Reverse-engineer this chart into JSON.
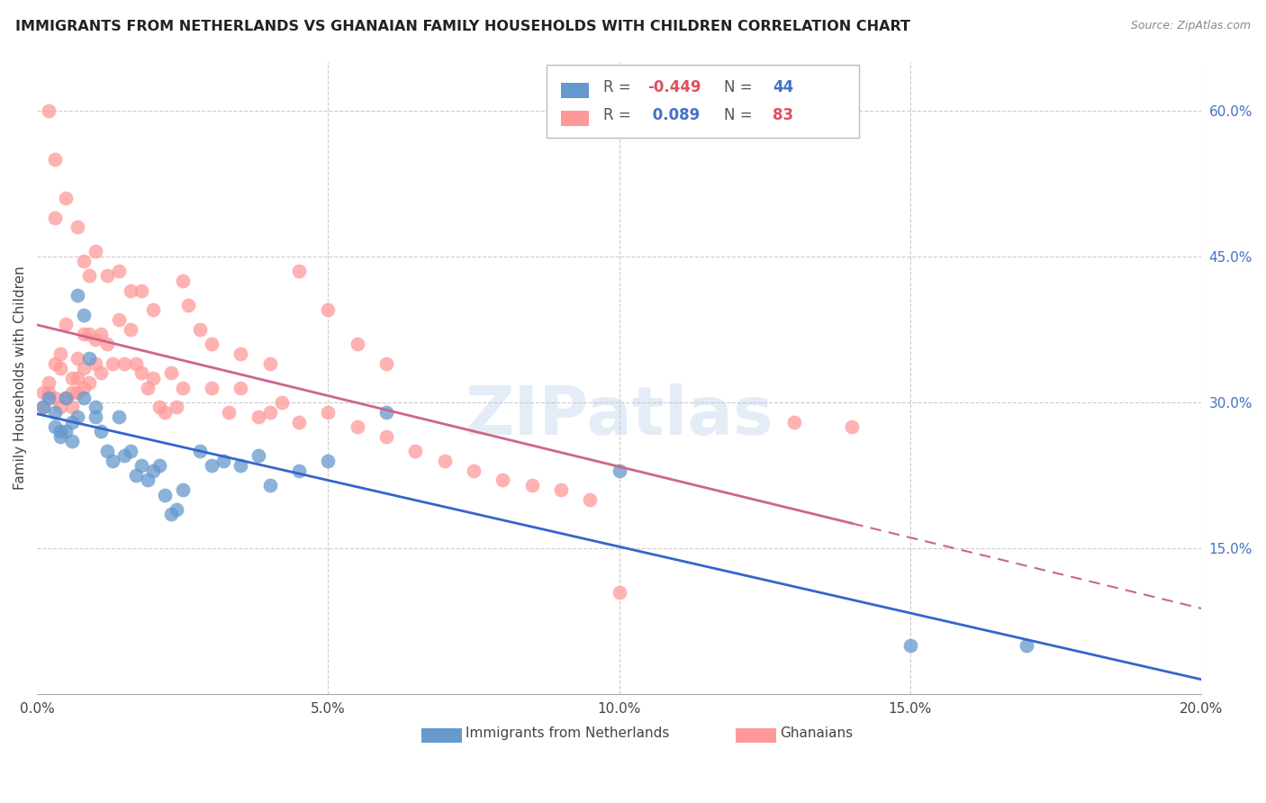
{
  "title": "IMMIGRANTS FROM NETHERLANDS VS GHANAIAN FAMILY HOUSEHOLDS WITH CHILDREN CORRELATION CHART",
  "source": "Source: ZipAtlas.com",
  "ylabel": "Family Households with Children",
  "xlim": [
    0.0,
    0.2
  ],
  "ylim": [
    0.0,
    0.65
  ],
  "xtick_vals": [
    0.0,
    0.05,
    0.1,
    0.15,
    0.2
  ],
  "xtick_labels": [
    "0.0%",
    "5.0%",
    "10.0%",
    "15.0%",
    "20.0%"
  ],
  "ytick_vals": [
    0.15,
    0.3,
    0.45,
    0.6
  ],
  "ytick_labels_right": [
    "15.0%",
    "30.0%",
    "45.0%",
    "60.0%"
  ],
  "grid_color": "#cccccc",
  "background_color": "#ffffff",
  "blue_color": "#6699cc",
  "pink_color": "#ff9999",
  "blue_line_color": "#3366cc",
  "pink_line_color": "#cc6688",
  "legend_R_blue": "-0.449",
  "legend_N_blue": "44",
  "legend_R_pink": "0.089",
  "legend_N_pink": "83",
  "blue_x": [
    0.001,
    0.002,
    0.003,
    0.003,
    0.004,
    0.004,
    0.005,
    0.005,
    0.006,
    0.006,
    0.007,
    0.007,
    0.008,
    0.008,
    0.009,
    0.01,
    0.01,
    0.011,
    0.012,
    0.013,
    0.014,
    0.015,
    0.016,
    0.017,
    0.018,
    0.019,
    0.02,
    0.021,
    0.022,
    0.023,
    0.024,
    0.025,
    0.028,
    0.03,
    0.032,
    0.035,
    0.038,
    0.04,
    0.045,
    0.05,
    0.06,
    0.1,
    0.15,
    0.17
  ],
  "blue_y": [
    0.295,
    0.305,
    0.275,
    0.29,
    0.27,
    0.265,
    0.305,
    0.27,
    0.26,
    0.28,
    0.41,
    0.285,
    0.39,
    0.305,
    0.345,
    0.285,
    0.295,
    0.27,
    0.25,
    0.24,
    0.285,
    0.245,
    0.25,
    0.225,
    0.235,
    0.22,
    0.23,
    0.235,
    0.205,
    0.185,
    0.19,
    0.21,
    0.25,
    0.235,
    0.24,
    0.235,
    0.245,
    0.215,
    0.23,
    0.24,
    0.29,
    0.23,
    0.05,
    0.05
  ],
  "pink_x": [
    0.001,
    0.001,
    0.002,
    0.002,
    0.003,
    0.003,
    0.004,
    0.004,
    0.004,
    0.005,
    0.005,
    0.006,
    0.006,
    0.006,
    0.007,
    0.007,
    0.007,
    0.008,
    0.008,
    0.008,
    0.009,
    0.009,
    0.01,
    0.01,
    0.011,
    0.011,
    0.012,
    0.013,
    0.014,
    0.015,
    0.016,
    0.017,
    0.018,
    0.019,
    0.02,
    0.021,
    0.022,
    0.023,
    0.024,
    0.025,
    0.026,
    0.028,
    0.03,
    0.033,
    0.035,
    0.038,
    0.04,
    0.042,
    0.045,
    0.05,
    0.055,
    0.06,
    0.065,
    0.07,
    0.075,
    0.08,
    0.085,
    0.09,
    0.095,
    0.1,
    0.003,
    0.005,
    0.007,
    0.008,
    0.009,
    0.01,
    0.012,
    0.014,
    0.016,
    0.018,
    0.02,
    0.025,
    0.03,
    0.035,
    0.04,
    0.045,
    0.05,
    0.055,
    0.06,
    0.13,
    0.14,
    0.002,
    0.003
  ],
  "pink_y": [
    0.295,
    0.31,
    0.32,
    0.31,
    0.34,
    0.305,
    0.35,
    0.335,
    0.295,
    0.38,
    0.305,
    0.31,
    0.325,
    0.295,
    0.345,
    0.325,
    0.31,
    0.37,
    0.335,
    0.315,
    0.37,
    0.32,
    0.365,
    0.34,
    0.37,
    0.33,
    0.36,
    0.34,
    0.385,
    0.34,
    0.375,
    0.34,
    0.33,
    0.315,
    0.325,
    0.295,
    0.29,
    0.33,
    0.295,
    0.315,
    0.4,
    0.375,
    0.315,
    0.29,
    0.315,
    0.285,
    0.29,
    0.3,
    0.28,
    0.29,
    0.275,
    0.265,
    0.25,
    0.24,
    0.23,
    0.22,
    0.215,
    0.21,
    0.2,
    0.105,
    0.49,
    0.51,
    0.48,
    0.445,
    0.43,
    0.455,
    0.43,
    0.435,
    0.415,
    0.415,
    0.395,
    0.425,
    0.36,
    0.35,
    0.34,
    0.435,
    0.395,
    0.36,
    0.34,
    0.28,
    0.275,
    0.6,
    0.55
  ]
}
